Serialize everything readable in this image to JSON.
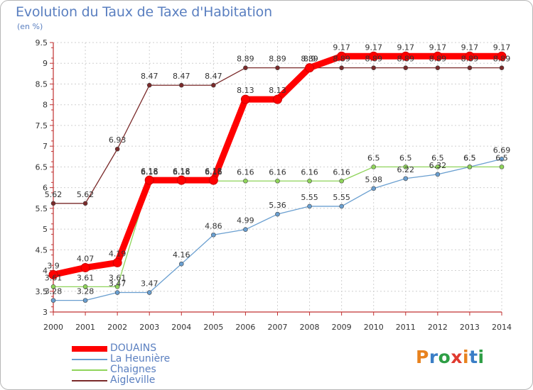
{
  "header": {
    "title": "Evolution du Taux de Taxe d'Habitation",
    "subtitle": "(en %)"
  },
  "logo": {
    "letters": [
      "P",
      "r",
      "o",
      "x",
      "i",
      "t",
      "i"
    ],
    "colors": [
      "#e8821e",
      "#3a7ec6",
      "#2e9e45",
      "#e03a2f",
      "#e8821e",
      "#3a7ec6",
      "#2e9e45"
    ]
  },
  "chart_data": {
    "type": "line",
    "title": "Evolution du Taux de Taxe d'Habitation",
    "ylabel": "(en %)",
    "xlabel": "",
    "x": [
      "2000",
      "2001",
      "2002",
      "2003",
      "2004",
      "2005",
      "2006",
      "2007",
      "2008",
      "2009",
      "2010",
      "2011",
      "2012",
      "2013",
      "2014"
    ],
    "ylim": [
      3,
      9.5
    ],
    "yticks": [
      "3",
      "3.5",
      "4",
      "4.5",
      "5",
      "5.5",
      "6",
      "6.5",
      "7",
      "7.5",
      "8",
      "8.5",
      "9",
      "9.5"
    ],
    "grid": true,
    "legend_position": "bottom-left",
    "series": [
      {
        "name": "DOUAINS",
        "color": "#ff0000",
        "values": [
          3.9,
          4.07,
          4.19,
          6.18,
          6.18,
          6.18,
          8.13,
          8.13,
          8.89,
          9.17,
          9.17,
          9.17,
          9.17,
          9.17,
          9.17
        ],
        "labels": [
          "3.9",
          "4.07",
          "4.19",
          "6.18",
          "6.18",
          "6.18",
          "8.13",
          "8.13",
          "8.9",
          "9.17",
          "9.17",
          "9.17",
          "9.17",
          "9.17",
          "9.17"
        ]
      },
      {
        "name": "La Heunière",
        "color": "#6a9fd0",
        "values": [
          3.28,
          3.28,
          3.47,
          3.47,
          4.16,
          4.86,
          4.99,
          5.36,
          5.55,
          5.55,
          5.98,
          6.22,
          6.32,
          6.5,
          6.69
        ],
        "labels": [
          "3.28",
          "3.28",
          "3.47",
          "3.47",
          "4.16",
          "4.86",
          "4.99",
          "5.36",
          "5.55",
          "5.55",
          "5.98",
          "6.22",
          "6.32",
          "6.5",
          "6.69"
        ]
      },
      {
        "name": "Chaignes",
        "color": "#8fd45a",
        "values": [
          3.61,
          3.61,
          3.61,
          6.16,
          6.16,
          6.16,
          6.16,
          6.16,
          6.16,
          6.16,
          6.5,
          6.5,
          6.5,
          6.5,
          6.5
        ],
        "labels": [
          "3.61",
          "3.61",
          "3.61",
          "6.16",
          "6.16",
          "6.16",
          "6.16",
          "6.16",
          "6.16",
          "6.16",
          "6.5",
          "6.5",
          "6.5",
          "6.5",
          "6.5"
        ]
      },
      {
        "name": "Aigleville",
        "color": "#7a2a2a",
        "values": [
          5.62,
          5.62,
          6.93,
          8.47,
          8.47,
          8.47,
          8.89,
          8.89,
          8.89,
          8.89,
          8.89,
          8.89,
          8.89,
          8.89,
          8.89
        ],
        "labels": [
          "5.62",
          "5.62",
          "6.93",
          "8.47",
          "8.47",
          "8.47",
          "8.89",
          "8.89",
          "8.89",
          "8.89",
          "8.89",
          "8.89",
          "8.89",
          "8.89",
          "8.89"
        ]
      }
    ]
  }
}
